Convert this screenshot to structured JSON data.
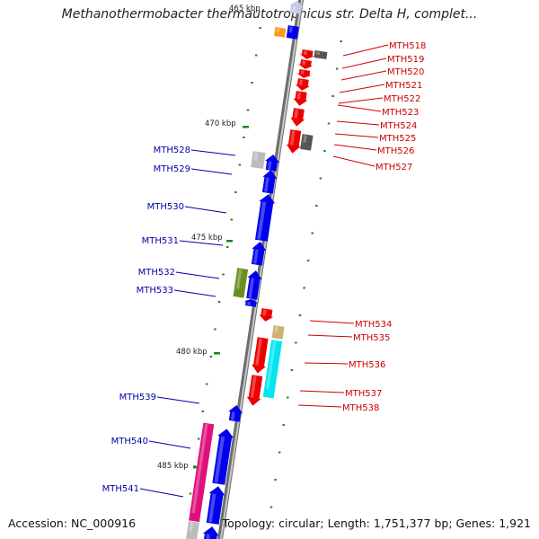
{
  "title": "Methanothermobacter thermautotrophicus str. Delta H, complet...",
  "footer": {
    "accession": "Accession: NC_000916",
    "topology": "Topology: circular; Length: 1,751,377 bp; Genes: 1,921"
  },
  "colors": {
    "forward": "#0000ee",
    "reverse": "#ee0000",
    "cyan": "#00e5ee",
    "magenta": "#e0107a",
    "olive": "#6b8e23",
    "tan": "#c8b46e",
    "dark_gray": "#555555",
    "light_gray": "#bbbbbb",
    "orange": "#ff9a1f",
    "lavender": "#c8c8f0",
    "tick": "#1a8a1a",
    "backbone": "#909090"
  },
  "scale_labels": [
    "465 kbp",
    "470 kbp",
    "475 kbp",
    "480 kbp",
    "485 kbp"
  ],
  "genes_left": [
    "MTH528",
    "MTH529",
    "MTH530",
    "MTH531",
    "MTH532",
    "MTH533",
    "MTH539",
    "MTH540",
    "MTH541"
  ],
  "genes_right": [
    "MTH518",
    "MTH519",
    "MTH520",
    "MTH521",
    "MTH522",
    "MTH523",
    "MTH524",
    "MTH525",
    "MTH526",
    "MTH527",
    "MTH534",
    "MTH535",
    "MTH536",
    "MTH537",
    "MTH538"
  ]
}
